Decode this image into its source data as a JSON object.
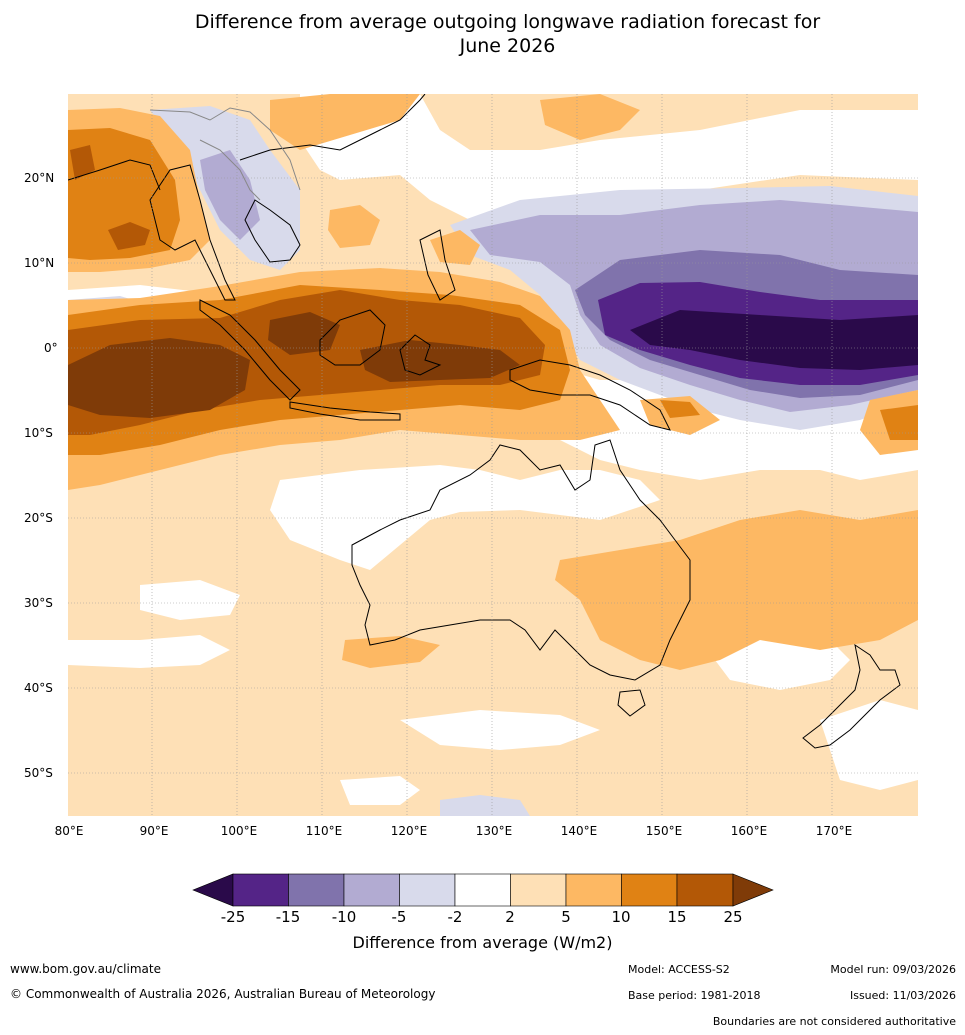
{
  "title": {
    "line1": "Difference from average outgoing longwave radiation forecast for",
    "line2": "June 2026"
  },
  "map": {
    "lat_labels": [
      "20°N",
      "10°N",
      "0°",
      "10°S",
      "20°S",
      "30°S",
      "40°S",
      "50°S"
    ],
    "lon_labels": [
      "80°E",
      "90°E",
      "100°E",
      "110°E",
      "120°E",
      "130°E",
      "140°E",
      "150°E",
      "160°E",
      "170°E"
    ]
  },
  "colorbar": {
    "tick_labels": [
      "-25",
      "-15",
      "-10",
      "-5",
      "-2",
      "2",
      "5",
      "10",
      "15",
      "25"
    ],
    "colors": {
      "below_-25": "#2a0a4a",
      "-25_-15": "#542487",
      "-15_-10": "#8073ac",
      "-10_-5": "#b2abd2",
      "-5_-2": "#d8daeb",
      "-2_2": "#ffffff",
      "2_5": "#fee0b6",
      "5_10": "#fdb863",
      "10_15": "#e08214",
      "15_25": "#b35806",
      "above_25": "#7f3b08"
    },
    "title": "Difference from average (W/m2)"
  },
  "footer": {
    "website": "www.bom.gov.au/climate",
    "copyright": "© Commonwealth of Australia 2026, Australian Bureau of Meteorology",
    "model": "Model: ACCESS-S2",
    "base_period": "Base period: 1981-2018",
    "model_run": "Model run: 09/03/2026",
    "issued": "Issued: 11/03/2026",
    "disclaimer": "Boundaries are not considered authoritative"
  }
}
